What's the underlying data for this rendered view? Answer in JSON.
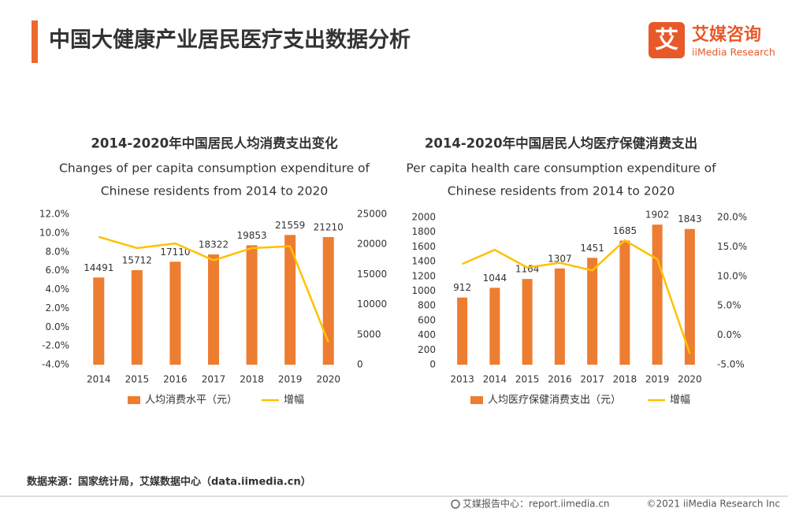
{
  "header": {
    "title": "中国大健康产业居民医疗支出数据分析",
    "logo_icon": "艾",
    "logo_name": "艾媒咨询",
    "logo_sub": "iiMedia Research"
  },
  "chart_data": [
    {
      "type": "bar",
      "title": "2014-2020年中国居民人均消费支出变化",
      "subtitle": [
        "Changes of per capita consumption expenditure of",
        "Chinese residents from 2014 to 2020"
      ],
      "categories": [
        "2014",
        "2015",
        "2016",
        "2017",
        "2018",
        "2019",
        "2020"
      ],
      "series": [
        {
          "name": "人均消费水平（元）",
          "type": "bar",
          "axis": "y2",
          "color": "#ED7D31",
          "values": [
            14491,
            15712,
            17110,
            18322,
            19853,
            21559,
            21210
          ]
        },
        {
          "name": "增幅",
          "type": "line",
          "color": "#FFC000",
          "values": [
            9.6,
            8.4,
            8.9,
            7.1,
            8.4,
            8.6,
            -1.6
          ]
        }
      ],
      "ylim": [
        -4,
        12
      ],
      "yticks": [
        {
          "value": -4,
          "label": "-4.0%"
        },
        {
          "value": -2,
          "label": "-2.0%"
        },
        {
          "value": 0,
          "label": "0.0%"
        },
        {
          "value": 2,
          "label": "2.0%"
        },
        {
          "value": 4,
          "label": "4.0%"
        },
        {
          "value": 6,
          "label": "6.0%"
        },
        {
          "value": 8,
          "label": "8.0%"
        },
        {
          "value": 10,
          "label": "10.0%"
        },
        {
          "value": 12,
          "label": "12.0%"
        }
      ],
      "y2lim": [
        0,
        25000
      ],
      "y2ticks": [
        0,
        5000,
        10000,
        15000,
        20000,
        25000
      ],
      "grid": false,
      "legend": "bottom"
    },
    {
      "type": "bar",
      "title": "2014-2020年中国居民人均医疗保健消费支出",
      "subtitle": [
        "Per capita health care consumption expenditure of",
        "Chinese residents from 2014 to 2020"
      ],
      "categories": [
        "2013",
        "2014",
        "2015",
        "2016",
        "2017",
        "2018",
        "2019",
        "2020"
      ],
      "series": [
        {
          "name": "人均医疗保健消费支出（元）",
          "type": "bar",
          "color": "#ED7D31",
          "values": [
            912,
            1044,
            1164,
            1307,
            1451,
            1685,
            1902,
            1843
          ]
        },
        {
          "name": "增幅",
          "type": "line",
          "axis": "y2",
          "color": "#FFC000",
          "values": [
            12.1,
            14.5,
            11.5,
            12.3,
            11.0,
            16.1,
            12.9,
            -3.1
          ]
        }
      ],
      "ylim": [
        0,
        2000
      ],
      "yticks": [
        0,
        200,
        400,
        600,
        800,
        1000,
        1200,
        1400,
        1600,
        1800,
        2000
      ],
      "y2lim": [
        -5,
        20
      ],
      "y2ticks": [
        {
          "value": -5,
          "label": "-5.0%"
        },
        {
          "value": 0,
          "label": "0.0%"
        },
        {
          "value": 5,
          "label": "5.0%"
        },
        {
          "value": 10,
          "label": "10.0%"
        },
        {
          "value": 15,
          "label": "15.0%"
        },
        {
          "value": 20,
          "label": "20.0%"
        }
      ],
      "grid": false,
      "legend": "bottom"
    }
  ],
  "source": "数据来源：国家统计局，艾媒数据中心（data.iimedia.cn）",
  "footer": {
    "site": "艾媒报告中心：report.iimedia.cn",
    "copyright": "©2021 iiMedia Research Inc"
  }
}
